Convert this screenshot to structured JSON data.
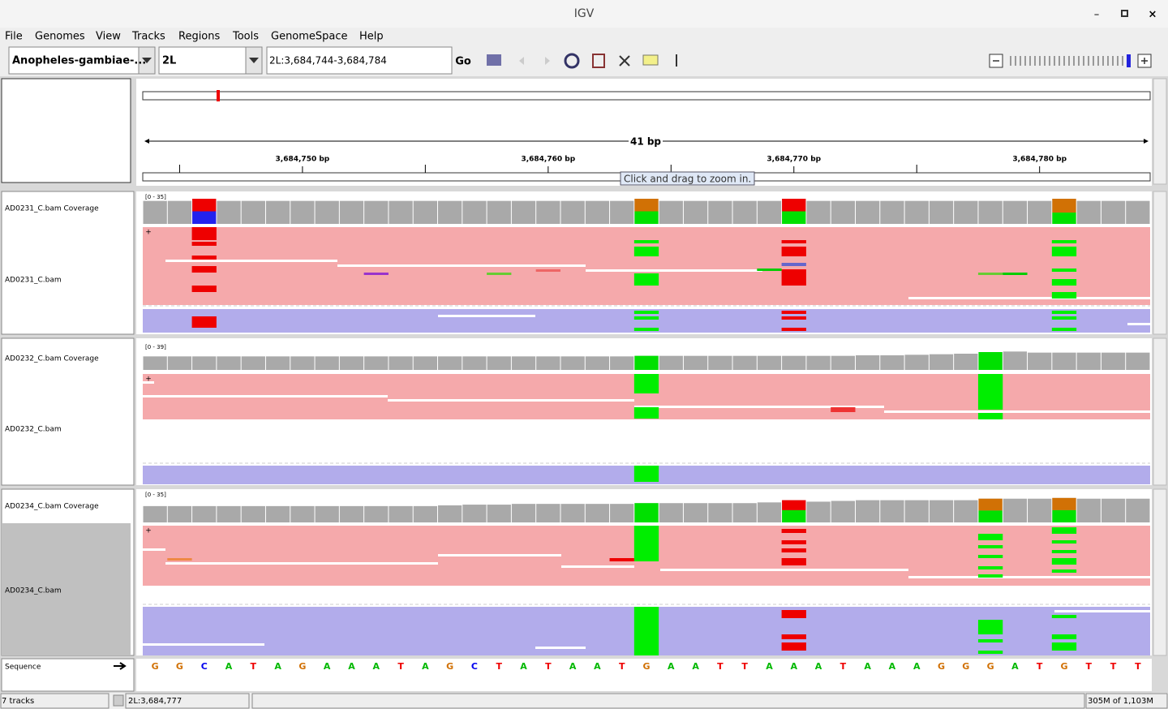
{
  "window_title": "IGV",
  "menu": [
    "File",
    "Genomes",
    "View",
    "Tracks",
    "Regions",
    "Tools",
    "GenomeSpace",
    "Help"
  ],
  "toolbar": {
    "genome": "Anopheles-gambiae-...",
    "chromosome": "2L",
    "locus": "2L:3,684,744-3,684,784",
    "go": "Go"
  },
  "ruler": {
    "span": "41 bp",
    "ticks": [
      "3,684,750 bp",
      "3,684,760 bp",
      "3,684,770 bp",
      "3,684,780 bp"
    ],
    "tooltip": "Click and drag to zoom in."
  },
  "tracks": [
    {
      "coverage_name": "AD0231_C.bam Coverage",
      "range": "[0 - 35]",
      "max": 35,
      "coverage": [
        32,
        32,
        35,
        32,
        32,
        32,
        32,
        32,
        32,
        32,
        32,
        32,
        32,
        32,
        32,
        32,
        32,
        32,
        32,
        32,
        35,
        32,
        32,
        32,
        32,
        32,
        35,
        32,
        32,
        32,
        32,
        32,
        32,
        32,
        32,
        32,
        32,
        35,
        32,
        32,
        32
      ],
      "alignment_name": "AD0231_C.bam"
    },
    {
      "coverage_name": "AD0232_C.bam Coverage",
      "range": "[0 - 39]",
      "max": 39,
      "coverage": [
        25,
        25,
        25,
        25,
        25,
        25,
        25,
        25,
        25,
        25,
        25,
        25,
        25,
        25,
        25,
        25,
        25,
        25,
        25,
        25,
        26,
        26,
        26,
        26,
        26,
        26,
        26,
        26,
        26,
        27,
        27,
        28,
        29,
        30,
        33,
        34,
        32,
        32,
        32,
        32,
        32
      ],
      "alignment_name": "AD0232_C.bam"
    },
    {
      "coverage_name": "AD0234_C.bam Coverage",
      "range": "[0 - 35]",
      "max": 35,
      "coverage": [
        22,
        22,
        22,
        22,
        22,
        22,
        22,
        22,
        22,
        22,
        22,
        22,
        23,
        24,
        24,
        25,
        25,
        25,
        25,
        25,
        26,
        26,
        26,
        26,
        26,
        27,
        30,
        28,
        29,
        30,
        30,
        30,
        30,
        30,
        32,
        32,
        32,
        33,
        32,
        32,
        32
      ],
      "alignment_name": "AD0234_C.bam"
    }
  ],
  "sequence": {
    "name": "Sequence",
    "bases": [
      "G",
      "G",
      "C",
      "A",
      "T",
      "A",
      "G",
      "A",
      "A",
      "A",
      "T",
      "A",
      "G",
      "C",
      "T",
      "A",
      "T",
      "A",
      "A",
      "T",
      "G",
      "A",
      "A",
      "T",
      "T",
      "A",
      "A",
      "A",
      "T",
      "A",
      "A",
      "A",
      "G",
      "G",
      "G",
      "A",
      "T",
      "G",
      "T",
      "T",
      "T"
    ]
  },
  "base_colors": {
    "A": "#00b800",
    "C": "#0000ee",
    "G": "#d17105",
    "T": "#ee0000"
  },
  "status": {
    "tracks": "7 tracks",
    "position": "2L:3,684,777",
    "memory": "305M of 1,103M"
  }
}
